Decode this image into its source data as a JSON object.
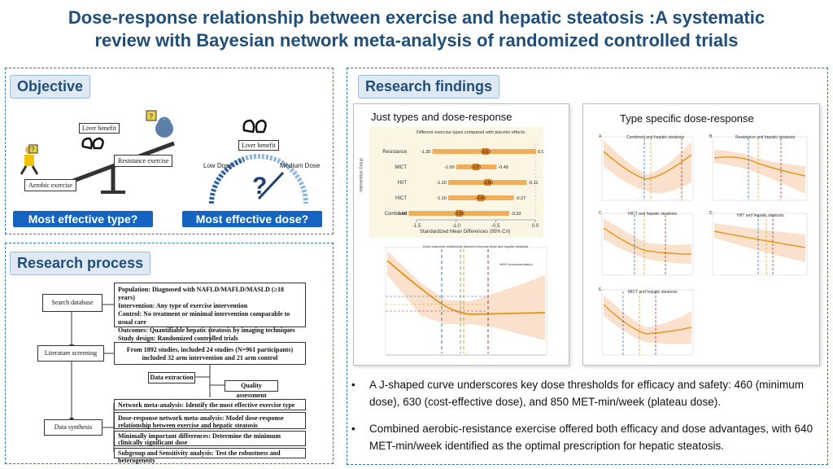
{
  "title_line1": "Dose-response relationship between exercise and hepatic steatosis :A systematic",
  "title_line2": "review with Bayesian network meta-analysis of randomized controlled trials",
  "objective": {
    "header": "Objective",
    "liver_benefit": "Liver benefit",
    "resistance": "Resistance exercise",
    "aerobic": "Aerobic exercise",
    "liver_benefit2": "Liver benefit",
    "low_dose": "Low Dose",
    "medium_dose": "Medium Dose",
    "btn_type": "Most effective type?",
    "btn_dose": "Most effective dose?"
  },
  "process": {
    "header": "Research process",
    "step1": "Search database",
    "step2": "Literature screening",
    "step3": "Data synthesis",
    "pico": [
      "Population: Diagnosed with NAFLD/MAFLD/MASLD (≥18 years)",
      "Intervention: Any type of exercise intervention",
      "Control: No treatment or minimal intervention comparable to usual care",
      "Outcomes: Quantifiable hepatic steatosis by imaging techniques",
      "Study design: Randomized controlled trials"
    ],
    "screen1": "From 1892 studies, included 24 studies (N=961 participants)",
    "screen2": "included 32 arm intervention and 21 arm control",
    "extraction": "Data extraction",
    "quality": "Quality assessment",
    "nma": "Network meta-analysis:  Identify the most effective exercise type",
    "dr_nma": "Dose-response network meta-analysis:  Model dose-response relationship between exercise and hepatic steatosis",
    "mid": "Minimally important differences:  Determine the minimum clinically significant dose",
    "sub": "Subgroup and Sensitivity analysis:  Test the robustness and heterogeneity"
  },
  "findings": {
    "header": "Research findings",
    "left_title": "Just types and dose-response",
    "right_title": "Type specific dose-response",
    "bullet1": "A J-shaped curve underscores key dose thresholds for efficacy and safety: 460 (minimum dose), 630 (cost-effective dose), and 850 MET-min/week (plateau dose).",
    "bullet2": "Combined aerobic-resistance exercise offered both efficacy and dose advantages, with 640 MET-min/week identified as the optimal prescription for hepatic steatosis."
  },
  "forest": {
    "title": "Different exercise types compared with placebo effects",
    "ylabel": "Intervention Group",
    "xlabel": "Standardized Mean Differences (95% CrI)",
    "xticks": [
      "-1.5",
      "-1.0",
      "-0.5",
      "0.0"
    ]
  },
  "dose_plot": {
    "title": "Dose-response relationship between exercise dose and hepatic steatosis",
    "who": "WHO recommendation",
    "ylabel": "Effect size (Hedges' g)"
  },
  "small_plots": [
    {
      "letter": "A",
      "title": "Combined and hepatic steatosis"
    },
    {
      "letter": "B",
      "title": "Resistance and hepatic steatosis"
    },
    {
      "letter": "C",
      "title": "HICT and hepatic steatosis"
    },
    {
      "letter": "D",
      "title": "HIIT and hepatic steatosis"
    },
    {
      "letter": "E",
      "title": "MICT and hepatic steatosis"
    }
  ],
  "chart_data": {
    "type": "forest",
    "title": "Different exercise types compared with placebo effects",
    "xlabel": "Standardized Mean Differences (95% CrI)",
    "ylabel": "Intervention Group",
    "xlim": [
      -1.5,
      0.0
    ],
    "rows": [
      {
        "label": "Resistance",
        "lower": -1.3,
        "mean": -0.63,
        "upper": 0.01,
        "t_lo": "-1.30",
        "t_mid": "-0.63",
        "t_hi": "0.01"
      },
      {
        "label": "MICT",
        "lower": -1.0,
        "mean": -0.75,
        "upper": -0.49,
        "t_lo": "-1.00",
        "t_mid": "-0.75",
        "t_hi": "-0.49"
      },
      {
        "label": "HIIT",
        "lower": -1.1,
        "mean": -0.6,
        "upper": -0.11,
        "t_lo": "-1.10",
        "t_mid": "-0.60",
        "t_hi": "-0.11"
      },
      {
        "label": "HICT",
        "lower": -1.1,
        "mean": -0.69,
        "upper": -0.27,
        "t_lo": "-1.10",
        "t_mid": "-0.69",
        "t_hi": "-0.27"
      },
      {
        "label": "Combined",
        "lower": -1.6,
        "mean": -0.96,
        "upper": -0.33,
        "t_lo": "-1.60",
        "t_mid": "-0.96",
        "t_hi": "-0.33"
      }
    ]
  }
}
